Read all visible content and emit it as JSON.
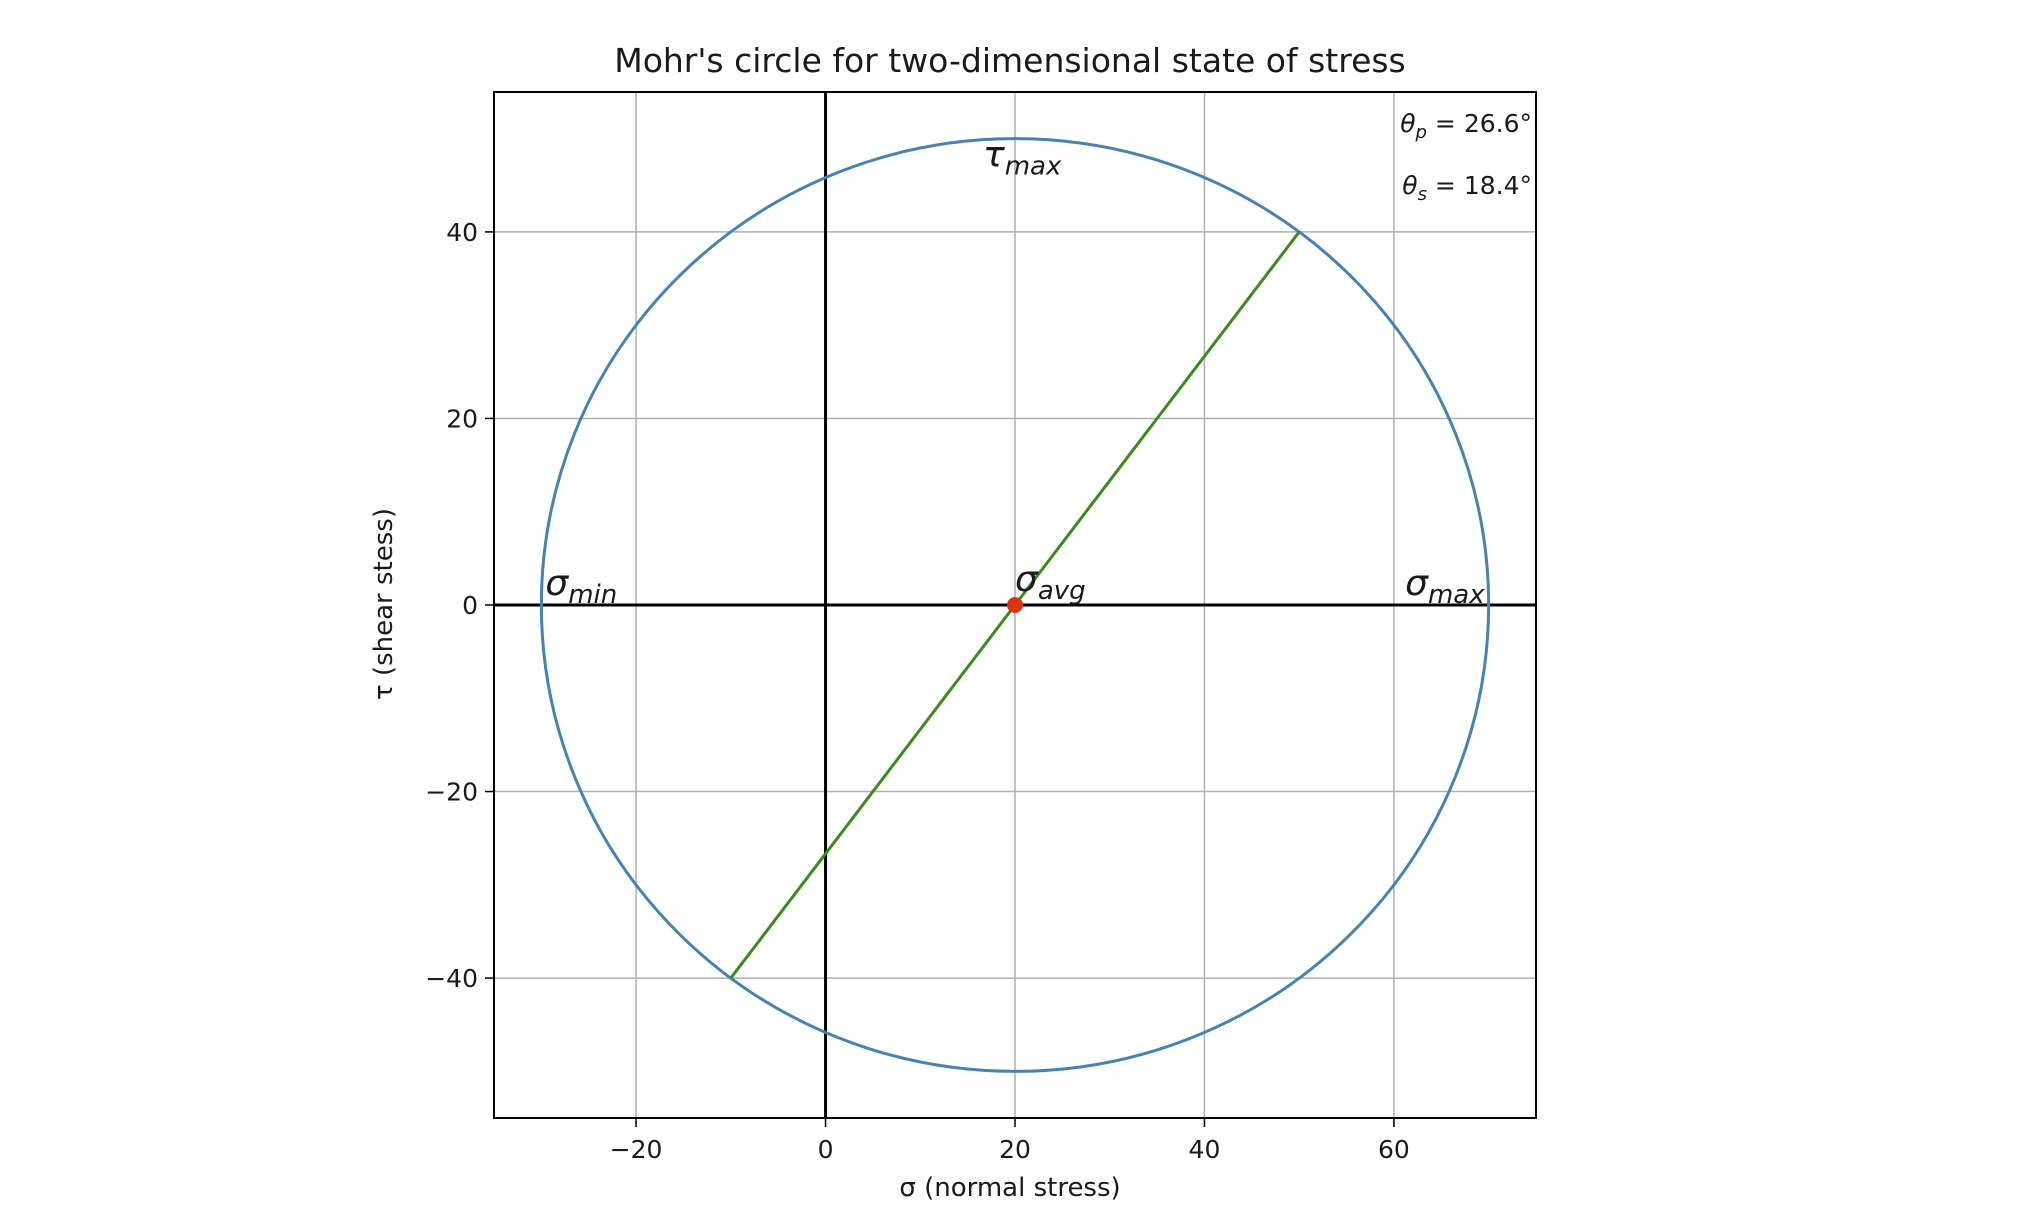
{
  "chart_data": {
    "type": "scatter",
    "title": "Mohr's circle for two-dimensional state of stress",
    "xlabel": "σ (normal stress)",
    "ylabel": "τ (shear stess)",
    "xlim": [
      -35,
      75
    ],
    "ylim": [
      -55,
      55
    ],
    "xticks": [
      -20,
      0,
      20,
      40,
      60
    ],
    "yticks": [
      -40,
      -20,
      0,
      20,
      40
    ],
    "xtick_labels": [
      "−20",
      "0",
      "20",
      "40",
      "60"
    ],
    "ytick_labels": [
      "−40",
      "−20",
      "0",
      "20",
      "40"
    ],
    "grid": true,
    "circle": {
      "center": [
        20,
        0
      ],
      "radius": 50,
      "color": "#4682b4"
    },
    "diameter_line": {
      "points": [
        [
          -10,
          -40
        ],
        [
          50,
          40
        ]
      ],
      "color": "#3a8a1e"
    },
    "center_point": {
      "x": 20,
      "y": 0,
      "color": "#dd3311"
    },
    "point_labels": [
      {
        "id": "tau_max",
        "base": "τ",
        "sub": "max",
        "x": 20,
        "y": 50
      },
      {
        "id": "sigma_min",
        "base": "σ",
        "sub": "min",
        "x": -30,
        "y": 0
      },
      {
        "id": "sigma_avg",
        "base": "σ",
        "sub": "avg",
        "x": 20,
        "y": 0
      },
      {
        "id": "sigma_max",
        "base": "σ",
        "sub": "max",
        "x": 70,
        "y": 0
      }
    ],
    "annotations": [
      {
        "id": "theta_p",
        "symbol": "θ",
        "sub": "p",
        "text": " = 26.6°"
      },
      {
        "id": "theta_s",
        "symbol": "θ",
        "sub": "s",
        "text": " = 18.4°"
      }
    ]
  }
}
